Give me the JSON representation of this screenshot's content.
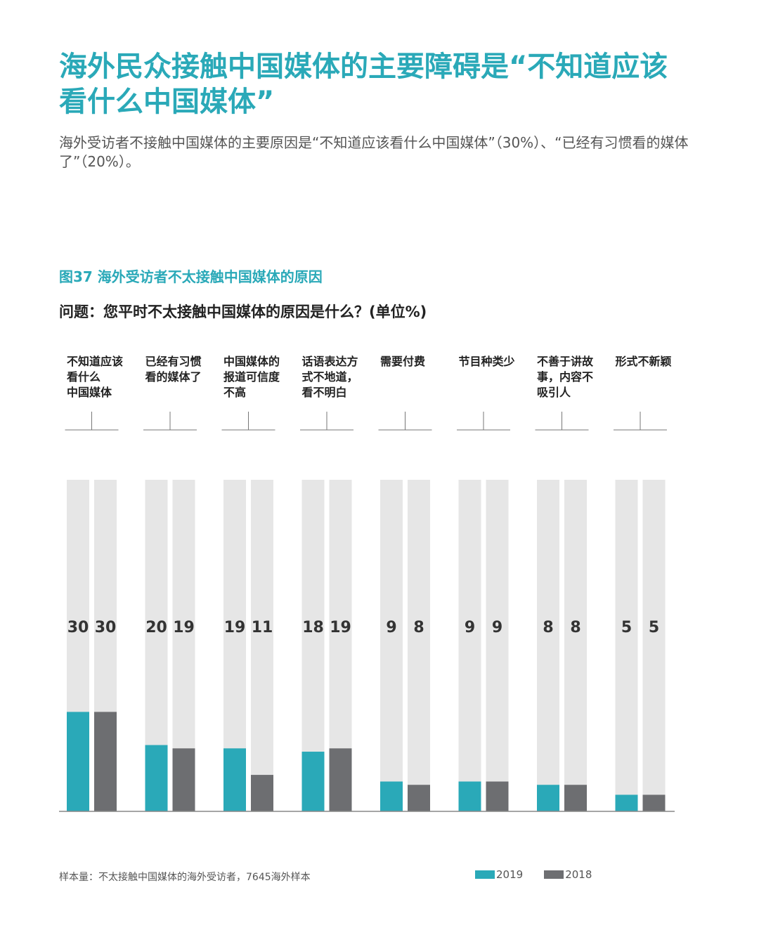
{
  "header": {
    "title": "海外民众接触中国媒体的主要障碍是“不知道应该看什么中国媒体”",
    "subtitle": "海外受访者不接触中国媒体的主要原因是“不知道应该看什么中国媒体”（30%）、“已经有习惯看的媒体了”（20%）。"
  },
  "figure": {
    "title": "图37 海外受访者不太接触中国媒体的原因",
    "question": "问题：您平时不太接触中国媒体的原因是什么？(单位%)"
  },
  "chart_data": {
    "type": "bar",
    "categories": [
      [
        "不知道应该",
        "看什么",
        "中国媒体"
      ],
      [
        "已经有习惯",
        "看的媒体了"
      ],
      [
        "中国媒体的",
        "报道可信度",
        "不高"
      ],
      [
        "话语表达方",
        "式不地道，",
        "看不明白"
      ],
      [
        "需要付费"
      ],
      [
        "节目种类少"
      ],
      [
        "不善于讲故",
        "事，内容不",
        "吸引人"
      ],
      [
        "形式不新颖"
      ]
    ],
    "series": [
      {
        "name": "2019",
        "color": "#2aa9b8",
        "values": [
          30,
          20,
          19,
          18,
          9,
          9,
          8,
          5
        ]
      },
      {
        "name": "2018",
        "color": "#6d6e71",
        "values": [
          30,
          19,
          11,
          19,
          8,
          9,
          8,
          5
        ]
      }
    ],
    "ylim": [
      0,
      100
    ],
    "background_color": "#e6e6e6"
  },
  "footer": {
    "note": "样本量：不太接触中国媒体的海外受访者，7645海外样本"
  },
  "legend": [
    {
      "label": "2019",
      "color": "#2aa9b8"
    },
    {
      "label": "2018",
      "color": "#6d6e71"
    }
  ]
}
